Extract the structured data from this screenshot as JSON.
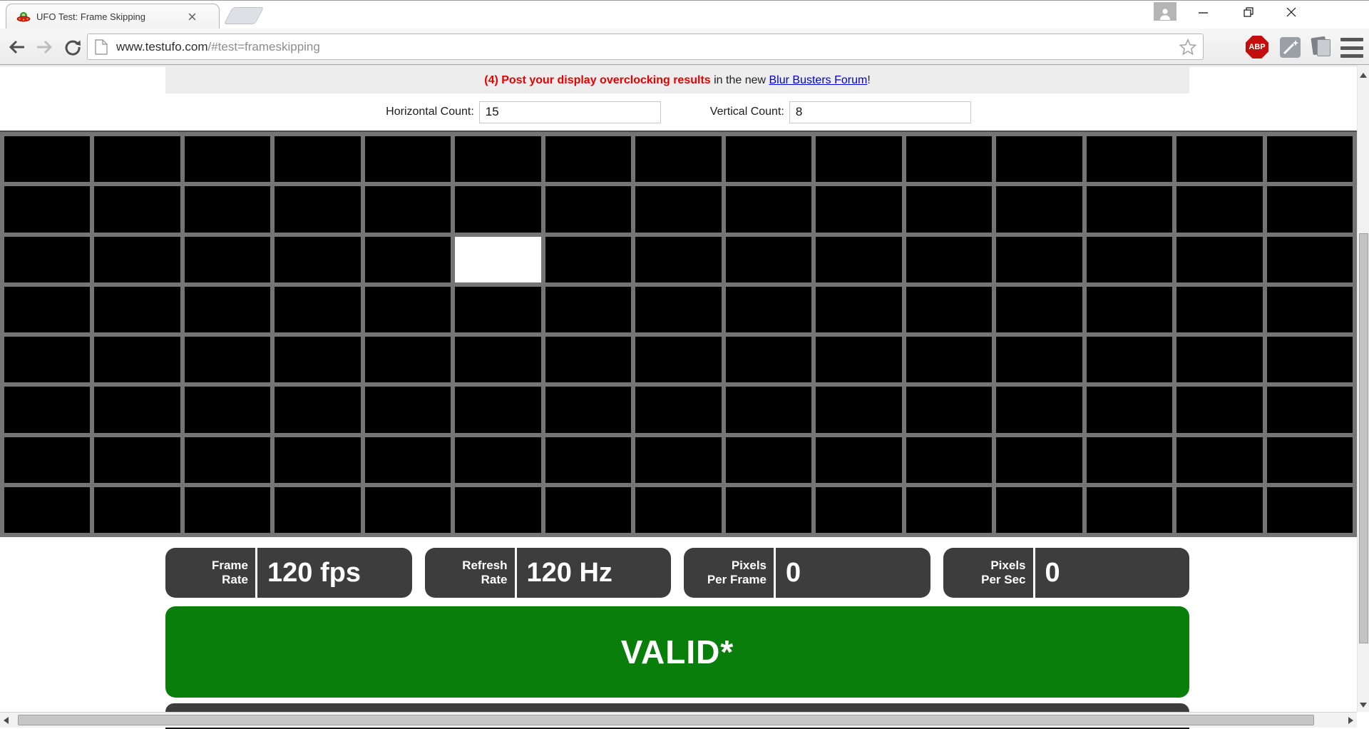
{
  "browser": {
    "tab_title": "UFO Test: Frame Skipping",
    "url_host": "www.testufo.com",
    "url_path": "/#test=frameskipping",
    "abp_label": "ABP"
  },
  "notice": {
    "highlight": "(4) Post your display overclocking results",
    "middle": " in the new ",
    "link": "Blur Busters Forum",
    "suffix": "!"
  },
  "controls": {
    "horizontal_label": "Horizontal Count:",
    "horizontal_value": "15",
    "vertical_label": "Vertical Count:",
    "vertical_value": "8"
  },
  "grid": {
    "columns": 15,
    "rows": 8,
    "white_cell": {
      "row": 3,
      "col": 6
    }
  },
  "stats": [
    {
      "label1": "Frame",
      "label2": "Rate",
      "value": "120 fps"
    },
    {
      "label1": "Refresh",
      "label2": "Rate",
      "value": "120 Hz"
    },
    {
      "label1": "Pixels",
      "label2": "Per Frame",
      "value": "0"
    },
    {
      "label1": "Pixels",
      "label2": "Per Sec",
      "value": "0"
    }
  ],
  "status": {
    "text": "VALID*"
  },
  "colors": {
    "red_accent": "#e80000",
    "link_blue": "#0000d8",
    "valid_green": "#0a7e0a",
    "stat_box": "#3d3d3d",
    "grid_line": "#757575",
    "cell_black": "#000000",
    "cell_white": "#ffffff"
  }
}
